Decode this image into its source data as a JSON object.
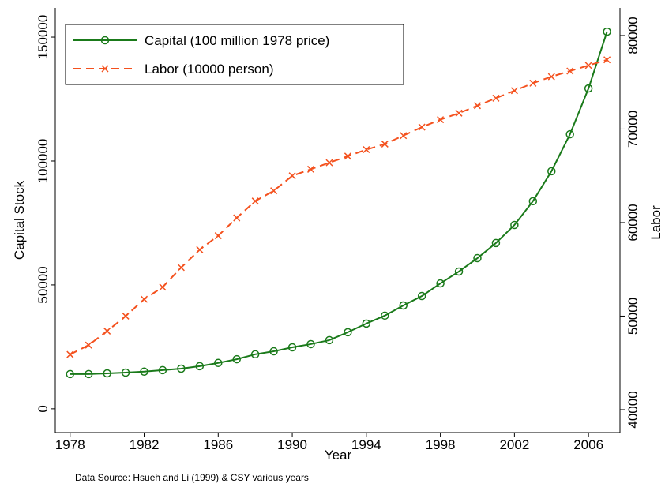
{
  "chart_data": {
    "type": "line",
    "x_label": "Year",
    "y_label": "Capital Stock",
    "y2_label": "Labor",
    "note": "Data Source: Hsueh and Li (1999) & CSY various years",
    "x": [
      1978,
      1979,
      1980,
      1981,
      1982,
      1983,
      1984,
      1985,
      1986,
      1987,
      1988,
      1989,
      1990,
      1991,
      1992,
      1993,
      1994,
      1995,
      1996,
      1997,
      1998,
      1999,
      2000,
      2001,
      2002,
      2003,
      2004,
      2005,
      2006,
      2007
    ],
    "series": [
      {
        "name": "Capital (100 million 1978 price)",
        "color": "#1a7a1a",
        "marker": "circle",
        "axis": "y",
        "values": [
          14000,
          14000,
          14300,
          14600,
          15000,
          15600,
          16200,
          17200,
          18500,
          20000,
          22000,
          23200,
          24800,
          26100,
          27700,
          30900,
          34400,
          37600,
          41700,
          45500,
          50600,
          55400,
          60800,
          66900,
          74200,
          83800,
          95900,
          110800,
          129300,
          152200
        ]
      },
      {
        "name": "Labor (10000 person)",
        "color": "#f4511e",
        "marker": "x",
        "dashed": true,
        "axis": "y2",
        "values": [
          45900,
          46900,
          48400,
          50000,
          51800,
          53100,
          55200,
          57100,
          58600,
          60500,
          62300,
          63400,
          65000,
          65700,
          66400,
          67100,
          67800,
          68400,
          69300,
          70200,
          71000,
          71700,
          72500,
          73300,
          74100,
          74900,
          75600,
          76200,
          76800,
          77400
        ]
      }
    ],
    "xlim": [
      1977.2,
      2007.7
    ],
    "xticks": [
      1978,
      1982,
      1986,
      1990,
      1994,
      1998,
      2002,
      2006
    ],
    "ylim": [
      -9600,
      161800
    ],
    "yticks": [
      0,
      50000,
      100000,
      150000
    ],
    "y2lim": [
      37550,
      82950
    ],
    "y2ticks": [
      40000,
      50000,
      60000,
      70000,
      80000
    ],
    "grid": false,
    "legend": "top-left"
  }
}
